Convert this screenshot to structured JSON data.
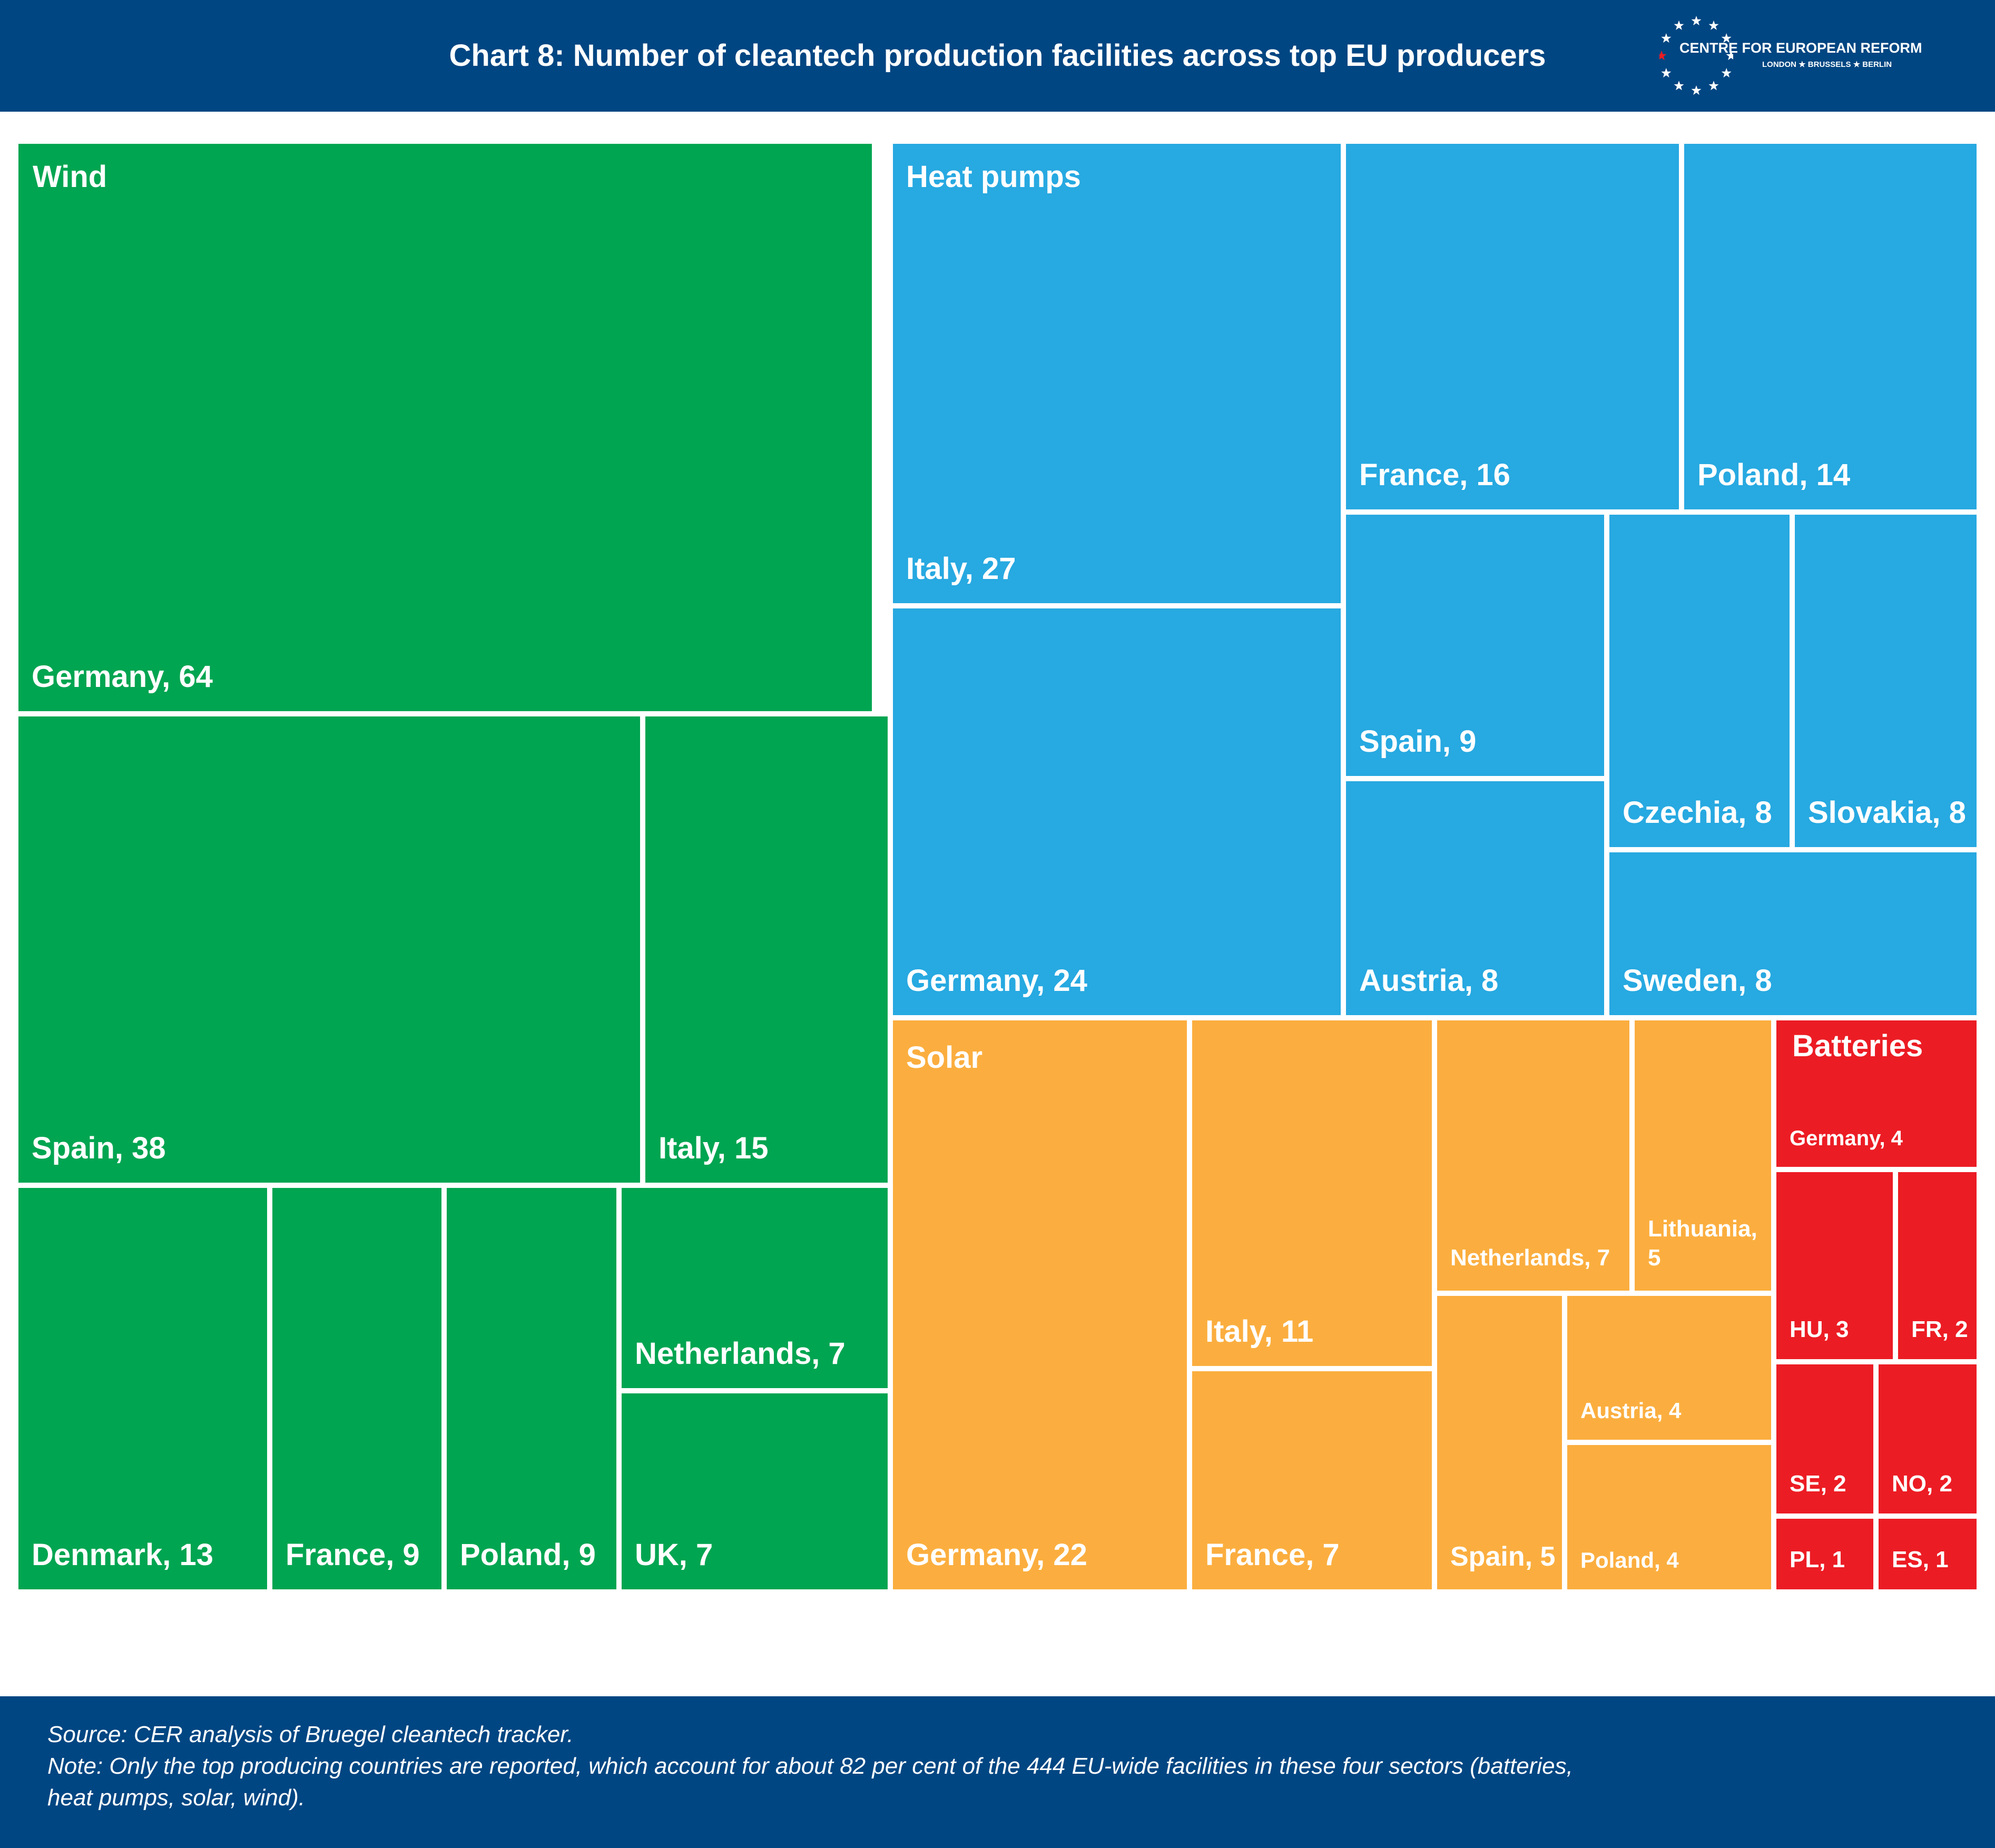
{
  "title": "Chart 8: Number of cleantech production facilities across top EU producers",
  "logo": {
    "name": "CENTRE FOR EUROPEAN REFORM",
    "cities": "LONDON ★ BRUSSELS ★ BERLIN"
  },
  "footer": {
    "source": "Source: CER analysis of Bruegel cleantech tracker.",
    "note_line1": "Note: Only the top producing countries are reported, which account for about 82 per cent of the 444 EU-wide facilities in these four sectors (batteries,",
    "note_line2": "heat pumps, solar, wind)."
  },
  "colors": {
    "header": "#004682",
    "Wind": "#00a551",
    "Heat pumps": "#27a9e1",
    "Solar": "#fbae3f",
    "Batteries": "#ec1c24"
  },
  "chart_data": {
    "type": "treemap",
    "title": "Chart 8: Number of cleantech production facilities across top EU producers",
    "groups": [
      {
        "name": "Wind",
        "items": [
          {
            "label": "Germany, 64",
            "country": "Germany",
            "value": 64
          },
          {
            "label": "Spain, 38",
            "country": "Spain",
            "value": 38
          },
          {
            "label": "Italy, 15",
            "country": "Italy",
            "value": 15
          },
          {
            "label": "Denmark, 13",
            "country": "Denmark",
            "value": 13
          },
          {
            "label": "France, 9",
            "country": "France",
            "value": 9
          },
          {
            "label": "Poland, 9",
            "country": "Poland",
            "value": 9
          },
          {
            "label": "Netherlands, 7",
            "country": "Netherlands",
            "value": 7
          },
          {
            "label": "UK, 7",
            "country": "UK",
            "value": 7
          }
        ]
      },
      {
        "name": "Heat pumps",
        "items": [
          {
            "label": "Italy, 27",
            "country": "Italy",
            "value": 27
          },
          {
            "label": "Germany, 24",
            "country": "Germany",
            "value": 24
          },
          {
            "label": "France, 16",
            "country": "France",
            "value": 16
          },
          {
            "label": "Poland, 14",
            "country": "Poland",
            "value": 14
          },
          {
            "label": "Spain, 9",
            "country": "Spain",
            "value": 9
          },
          {
            "label": "Austria, 8",
            "country": "Austria",
            "value": 8
          },
          {
            "label": "Czechia, 8",
            "country": "Czechia",
            "value": 8
          },
          {
            "label": "Slovakia, 8",
            "country": "Slovakia",
            "value": 8
          },
          {
            "label": "Sweden, 8",
            "country": "Sweden",
            "value": 8
          }
        ]
      },
      {
        "name": "Solar",
        "items": [
          {
            "label": "Germany, 22",
            "country": "Germany",
            "value": 22
          },
          {
            "label": "Italy, 11",
            "country": "Italy",
            "value": 11
          },
          {
            "label": "France, 7",
            "country": "France",
            "value": 7
          },
          {
            "label": "Netherlands, 7",
            "country": "Netherlands",
            "value": 7
          },
          {
            "label": "Lithuania, 5",
            "country": "Lithuania",
            "value": 5
          },
          {
            "label": "Spain, 5",
            "country": "Spain",
            "value": 5
          },
          {
            "label": "Austria, 4",
            "country": "Austria",
            "value": 4
          },
          {
            "label": "Poland, 4",
            "country": "Poland",
            "value": 4
          }
        ]
      },
      {
        "name": "Batteries",
        "items": [
          {
            "label": "Germany, 4",
            "country": "Germany",
            "value": 4
          },
          {
            "label": "HU, 3",
            "country": "HU",
            "value": 3
          },
          {
            "label": "FR, 2",
            "country": "FR",
            "value": 2
          },
          {
            "label": "SE, 2",
            "country": "SE",
            "value": 2
          },
          {
            "label": "NO, 2",
            "country": "NO",
            "value": 2
          },
          {
            "label": "PL, 1",
            "country": "PL",
            "value": 1
          },
          {
            "label": "ES, 1",
            "country": "ES",
            "value": 1
          }
        ]
      }
    ]
  }
}
